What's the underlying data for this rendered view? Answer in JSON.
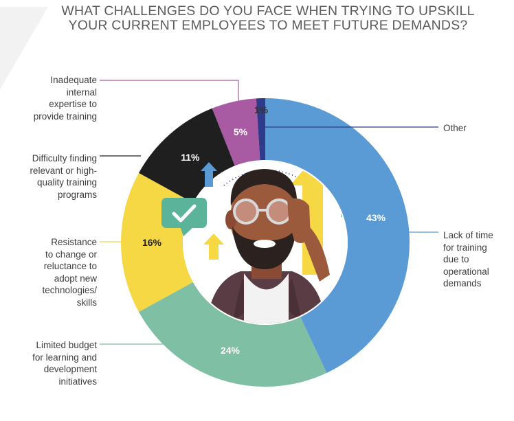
{
  "title": {
    "line1": "WHAT CHALLENGES DO YOU FACE WHEN TRYING TO UPSKILL",
    "line2": "YOUR CURRENT EMPLOYEES TO MEET FUTURE DEMANDS?"
  },
  "colors": {
    "lack_of_time": "#5b9bd5",
    "limited_budget": "#7fbfa4",
    "resistance": "#f6d845",
    "difficulty_finding": "#1f1f1f",
    "inadequate_expertise": "#a85aa3",
    "other": "#2e3a8a"
  },
  "chart_data": {
    "type": "pie",
    "style": "donut",
    "start_angle": "12 o'clock",
    "direction": "clockwise",
    "slices": [
      {
        "label": "Lack of time for training due to operational demands",
        "value": 43,
        "value_label": "43%",
        "color": "#5b9bd5"
      },
      {
        "label": "Limited budget for learning and development initiatives",
        "value": 24,
        "value_label": "24%",
        "color": "#7fbfa4"
      },
      {
        "label": "Resistance to change or reluctance to adopt new technologies/ skills",
        "value": 16,
        "value_label": "16%",
        "color": "#f6d845"
      },
      {
        "label": "Difficulty finding relevant or high-quality training programs",
        "value": 11,
        "value_label": "11%",
        "color": "#1f1f1f"
      },
      {
        "label": "Inadequate internal expertise to provide training",
        "value": 5,
        "value_label": "5%",
        "color": "#a85aa3"
      },
      {
        "label": "Other",
        "value": 1,
        "value_label": "1%",
        "color": "#2e3a8a"
      }
    ]
  },
  "labels": {
    "lack_of_time": "Lack of time\nfor training\ndue to\noperational\ndemands",
    "limited_budget": "Limited budget\nfor learning and\ndevelopment\ninitiatives",
    "resistance": "Resistance\nto change or\nreluctance to\nadopt new\ntechnologies/\nskills",
    "difficulty_finding": "Difficulty finding\nrelevant or high-\nquality training\nprograms",
    "inadequate_expertise": "Inadequate\ninternal\nexpertise to\nprovide training",
    "other": "Other"
  }
}
